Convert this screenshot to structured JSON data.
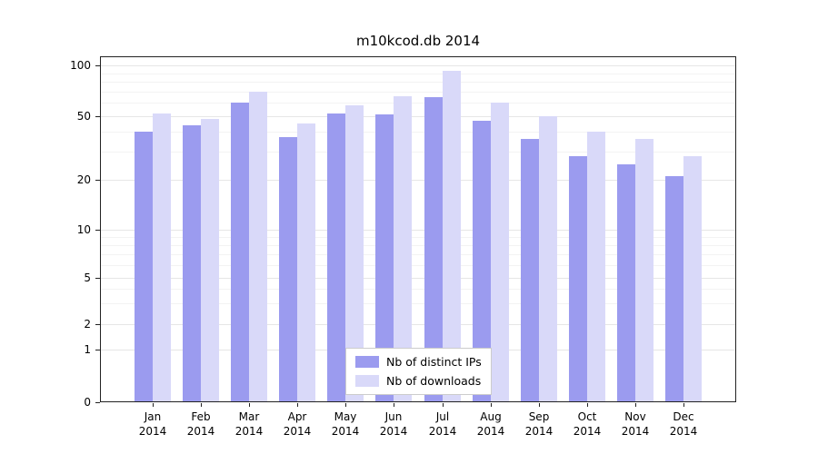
{
  "chart_data": {
    "type": "bar",
    "title": "m10kcod.db 2014",
    "yscale": "symlog",
    "grid": true,
    "legend_position": "lower center",
    "xlabel": "",
    "ylabel": "",
    "y_ticks": [
      0,
      1,
      2,
      5,
      10,
      20,
      50,
      100
    ],
    "y_minor_ticks": [
      3,
      4,
      6,
      7,
      8,
      9,
      30,
      40,
      60,
      70,
      80,
      90
    ],
    "ylim": [
      0,
      110
    ],
    "categories": [
      "Jan 2014",
      "Feb 2014",
      "Mar 2014",
      "Apr 2014",
      "May 2014",
      "Jun 2014",
      "Jul 2014",
      "Aug 2014",
      "Sep 2014",
      "Oct 2014",
      "Nov 2014",
      "Dec 2014"
    ],
    "series": [
      {
        "name": "Nb of distinct IPs",
        "color": "#9b9bef",
        "values": [
          40,
          44,
          60,
          37,
          52,
          51,
          65,
          47,
          36,
          28,
          25,
          21
        ]
      },
      {
        "name": "Nb of downloads",
        "color": "#d9d9f9",
        "values": [
          52,
          48,
          70,
          45,
          58,
          66,
          93,
          60,
          50,
          40,
          36,
          28
        ]
      }
    ]
  },
  "colors": {
    "grid_major": "#e6e6e6",
    "grid_minor": "#f3f3f3",
    "axis": "#222222",
    "text": "#000000",
    "legend_border": "#cccccc",
    "background": "#ffffff"
  }
}
